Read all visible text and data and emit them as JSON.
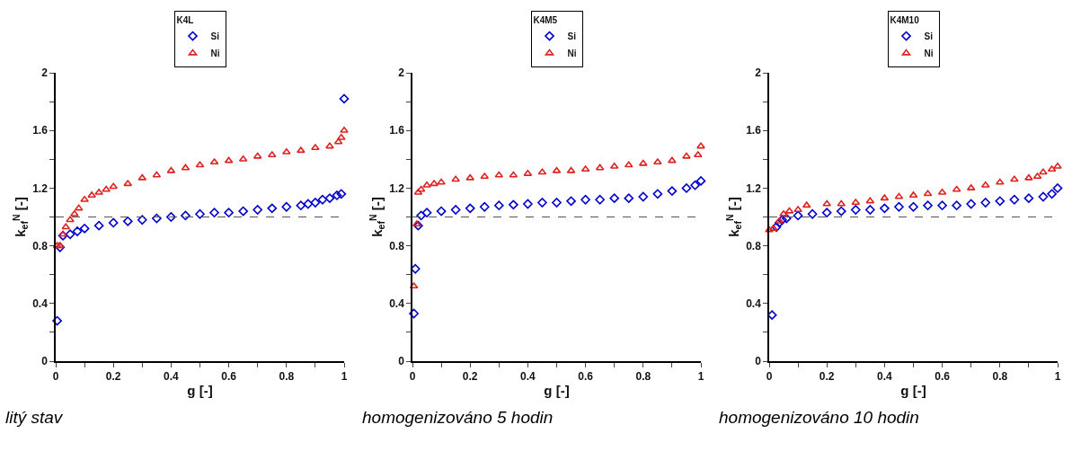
{
  "chart_data": [
    {
      "type": "scatter",
      "legend_title": "K4L",
      "xlabel": "g [-]",
      "ylabel": "k$_{ef}$$^{N}$ [-]",
      "annotations": [
        "litý stav"
      ],
      "legend": "top",
      "grid": false,
      "xlim": [
        0,
        1
      ],
      "ylim": [
        0,
        2
      ],
      "xticks": [
        0,
        {
          "value": 0.1,
          "label": null
        },
        0.2,
        {
          "value": 0.3,
          "label": null
        },
        0.4,
        {
          "value": 0.5,
          "label": null
        },
        0.6,
        {
          "value": 0.7,
          "label": null
        },
        0.8,
        {
          "value": 0.9,
          "label": null
        },
        1
      ],
      "yticks": [
        0,
        {
          "value": 0.2,
          "label": null
        },
        0.4,
        {
          "value": 0.6,
          "label": null
        },
        0.8,
        {
          "value": 1,
          "label": null
        },
        1.2,
        {
          "value": 1.4,
          "label": null
        },
        1.6,
        {
          "value": 1.8,
          "label": null
        },
        2
      ],
      "ref_lines": [
        {
          "axis": "y",
          "value": 1,
          "color": "#555555",
          "line_style": "dashed"
        }
      ],
      "series": [
        {
          "name": "Si",
          "color": "#0000cc",
          "marker": "diamond",
          "x": [
            0.005,
            0.015,
            0.025,
            0.05,
            0.075,
            0.1,
            0.15,
            0.2,
            0.25,
            0.3,
            0.35,
            0.4,
            0.45,
            0.5,
            0.55,
            0.6,
            0.65,
            0.7,
            0.75,
            0.8,
            0.85,
            0.875,
            0.9,
            0.925,
            0.95,
            0.975,
            0.99,
            1.0
          ],
          "values": [
            0.28,
            0.79,
            0.87,
            0.88,
            0.9,
            0.92,
            0.94,
            0.96,
            0.97,
            0.98,
            0.99,
            1.0,
            1.01,
            1.02,
            1.03,
            1.03,
            1.04,
            1.05,
            1.06,
            1.07,
            1.08,
            1.09,
            1.1,
            1.12,
            1.13,
            1.15,
            1.16,
            1.82
          ]
        },
        {
          "name": "Ni",
          "color": "#dd2222",
          "marker": "triangle",
          "x": [
            0.005,
            0.015,
            0.025,
            0.035,
            0.05,
            0.065,
            0.08,
            0.1,
            0.125,
            0.15,
            0.175,
            0.2,
            0.25,
            0.3,
            0.35,
            0.4,
            0.45,
            0.5,
            0.55,
            0.6,
            0.65,
            0.7,
            0.75,
            0.8,
            0.85,
            0.9,
            0.95,
            0.98,
            0.99,
            1.0
          ],
          "values": [
            0.8,
            0.8,
            0.88,
            0.93,
            0.98,
            1.02,
            1.06,
            1.12,
            1.15,
            1.17,
            1.19,
            1.21,
            1.23,
            1.27,
            1.29,
            1.32,
            1.34,
            1.36,
            1.38,
            1.39,
            1.4,
            1.42,
            1.43,
            1.45,
            1.46,
            1.48,
            1.49,
            1.52,
            1.55,
            1.6
          ]
        }
      ]
    },
    {
      "type": "scatter",
      "legend_title": "K4M5",
      "xlabel": "g [-]",
      "ylabel": "k$_{ef}$$^{N}$ [-]",
      "annotations": [
        "homogenizováno 5 hodin"
      ],
      "legend": "top",
      "grid": false,
      "xlim": [
        0,
        1
      ],
      "ylim": [
        0,
        2
      ],
      "xticks": [
        0,
        {
          "value": 0.1,
          "label": null
        },
        0.2,
        {
          "value": 0.3,
          "label": null
        },
        0.4,
        {
          "value": 0.5,
          "label": null
        },
        0.6,
        {
          "value": 0.7,
          "label": null
        },
        0.8,
        {
          "value": 0.9,
          "label": null
        },
        1
      ],
      "yticks": [
        0,
        {
          "value": 0.2,
          "label": null
        },
        0.4,
        {
          "value": 0.6,
          "label": null
        },
        0.8,
        {
          "value": 1,
          "label": null
        },
        1.2,
        {
          "value": 1.4,
          "label": null
        },
        1.6,
        {
          "value": 1.8,
          "label": null
        },
        2
      ],
      "ref_lines": [
        {
          "axis": "y",
          "value": 1,
          "color": "#555555",
          "line_style": "dashed"
        }
      ],
      "series": [
        {
          "name": "Si",
          "color": "#0000cc",
          "marker": "diamond",
          "x": [
            0.005,
            0.01,
            0.02,
            0.03,
            0.05,
            0.1,
            0.15,
            0.2,
            0.25,
            0.3,
            0.35,
            0.4,
            0.45,
            0.5,
            0.55,
            0.6,
            0.65,
            0.7,
            0.75,
            0.8,
            0.85,
            0.9,
            0.95,
            0.98,
            1.0
          ],
          "values": [
            0.33,
            0.64,
            0.94,
            1.01,
            1.03,
            1.04,
            1.05,
            1.06,
            1.07,
            1.08,
            1.085,
            1.09,
            1.1,
            1.1,
            1.11,
            1.12,
            1.12,
            1.13,
            1.13,
            1.14,
            1.16,
            1.18,
            1.2,
            1.22,
            1.25
          ]
        },
        {
          "name": "Ni",
          "color": "#dd2222",
          "marker": "triangle",
          "x": [
            0.005,
            0.015,
            0.02,
            0.03,
            0.05,
            0.075,
            0.1,
            0.15,
            0.2,
            0.25,
            0.3,
            0.35,
            0.4,
            0.45,
            0.5,
            0.55,
            0.6,
            0.65,
            0.7,
            0.75,
            0.8,
            0.85,
            0.9,
            0.95,
            0.99,
            1.0
          ],
          "values": [
            0.52,
            0.95,
            1.17,
            1.19,
            1.22,
            1.23,
            1.24,
            1.26,
            1.27,
            1.28,
            1.29,
            1.29,
            1.3,
            1.31,
            1.32,
            1.32,
            1.33,
            1.34,
            1.35,
            1.36,
            1.37,
            1.38,
            1.39,
            1.42,
            1.43,
            1.49
          ]
        }
      ]
    },
    {
      "type": "scatter",
      "legend_title": "K4M10",
      "xlabel": "g [-]",
      "ylabel": "k$_{ef}$$^{N}$ [-]",
      "annotations": [
        "homogenizováno 10 hodin"
      ],
      "legend": "top",
      "grid": false,
      "xlim": [
        0,
        1
      ],
      "ylim": [
        0,
        2
      ],
      "xticks": [
        0,
        {
          "value": 0.1,
          "label": null
        },
        0.2,
        {
          "value": 0.3,
          "label": null
        },
        0.4,
        {
          "value": 0.5,
          "label": null
        },
        0.6,
        {
          "value": 0.7,
          "label": null
        },
        0.8,
        {
          "value": 0.9,
          "label": null
        },
        1
      ],
      "yticks": [
        0,
        {
          "value": 0.2,
          "label": null
        },
        0.4,
        {
          "value": 0.6,
          "label": null
        },
        0.8,
        {
          "value": 1,
          "label": null
        },
        1.2,
        {
          "value": 1.4,
          "label": null
        },
        1.6,
        {
          "value": 1.8,
          "label": null
        },
        2
      ],
      "ref_lines": [
        {
          "axis": "y",
          "value": 1,
          "color": "#555555",
          "line_style": "dashed"
        }
      ],
      "series": [
        {
          "name": "Si",
          "color": "#0000cc",
          "marker": "diamond",
          "x": [
            0.01,
            0.025,
            0.035,
            0.045,
            0.06,
            0.1,
            0.15,
            0.2,
            0.25,
            0.3,
            0.35,
            0.4,
            0.45,
            0.5,
            0.55,
            0.6,
            0.65,
            0.7,
            0.75,
            0.8,
            0.85,
            0.9,
            0.95,
            0.98,
            1.0
          ],
          "values": [
            0.32,
            0.93,
            0.96,
            0.98,
            0.99,
            1.01,
            1.02,
            1.03,
            1.04,
            1.05,
            1.05,
            1.06,
            1.07,
            1.07,
            1.08,
            1.08,
            1.08,
            1.09,
            1.1,
            1.11,
            1.12,
            1.13,
            1.14,
            1.16,
            1.2
          ]
        },
        {
          "name": "Ni",
          "color": "#dd2222",
          "marker": "triangle",
          "x": [
            0.0,
            0.015,
            0.035,
            0.05,
            0.07,
            0.1,
            0.13,
            0.2,
            0.25,
            0.3,
            0.35,
            0.4,
            0.45,
            0.5,
            0.55,
            0.6,
            0.65,
            0.7,
            0.75,
            0.8,
            0.85,
            0.9,
            0.93,
            0.95,
            0.98,
            1.0
          ],
          "values": [
            0.91,
            0.92,
            0.97,
            1.02,
            1.04,
            1.05,
            1.08,
            1.09,
            1.09,
            1.1,
            1.11,
            1.13,
            1.14,
            1.15,
            1.16,
            1.17,
            1.19,
            1.2,
            1.22,
            1.24,
            1.26,
            1.27,
            1.28,
            1.31,
            1.33,
            1.35
          ]
        }
      ]
    }
  ]
}
